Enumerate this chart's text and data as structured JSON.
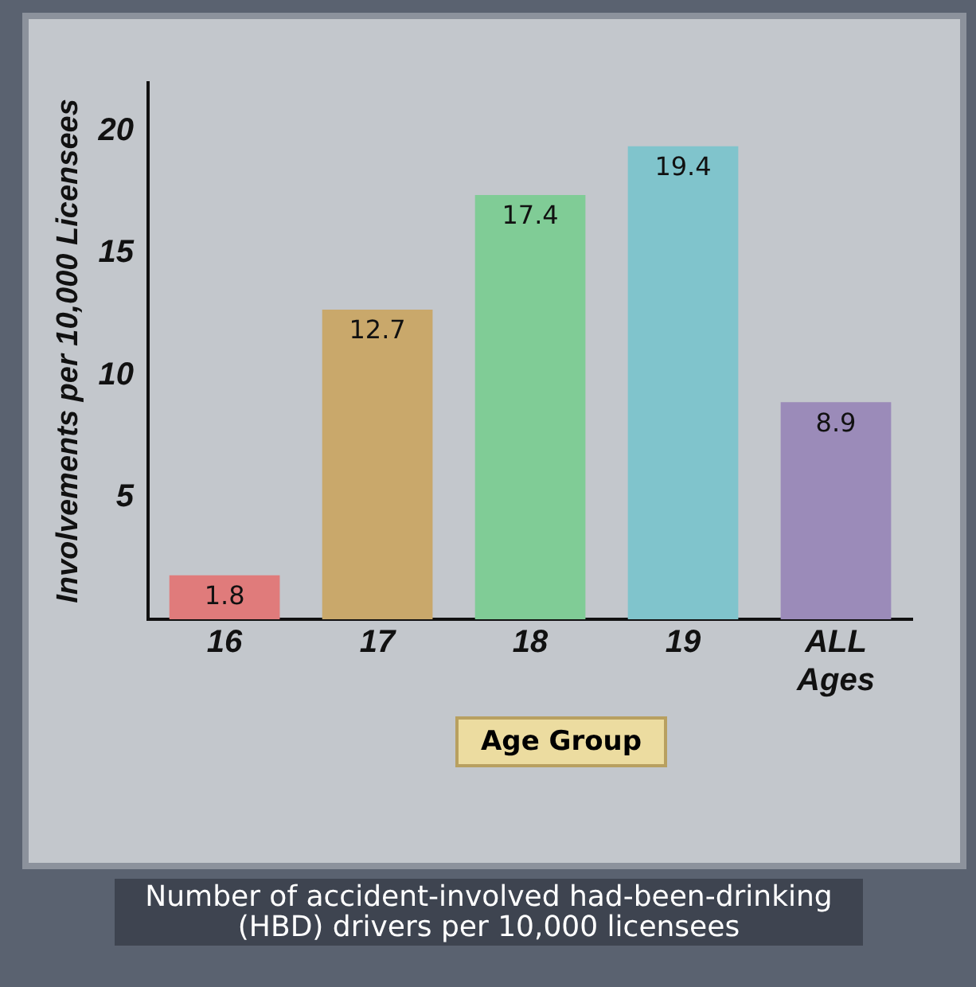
{
  "chart_data": {
    "type": "bar",
    "xlabel": "Age Group",
    "ylabel": "Involvements per 10,000 Licensees",
    "categories": [
      "16",
      "17",
      "18",
      "19",
      "ALL Ages"
    ],
    "values": [
      1.8,
      12.7,
      17.4,
      19.4,
      8.9
    ],
    "colors": [
      "#e07b7b",
      "#c9a86b",
      "#80cc96",
      "#80c4cc",
      "#9b8bb9"
    ],
    "ylim": [
      0,
      22
    ],
    "yticks": [
      5,
      10,
      15,
      20
    ],
    "grid": false,
    "legend": false,
    "data_labels": true,
    "annotations": [
      "Number of accident-involved had-been-drinking (HBD) drivers per 10,000 licensees"
    ]
  }
}
